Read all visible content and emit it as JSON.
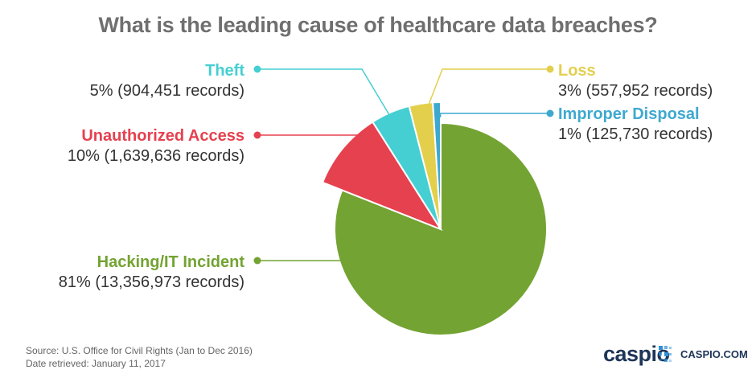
{
  "title": "What is the leading cause of healthcare data breaches?",
  "chart_data": {
    "type": "pie",
    "title": "What is the leading cause of healthcare data breaches?",
    "slices": [
      {
        "key": "hacking",
        "label": "Hacking/IT Incident",
        "percent": 81,
        "percent_label": "81%",
        "records": 13356973,
        "detail": "81% (13,356,973 records)",
        "color": "#73a332",
        "exploded": false
      },
      {
        "key": "unauthorized",
        "label": "Unauthorized Access",
        "percent": 10,
        "percent_label": "10%",
        "records": 1639636,
        "detail": "10% (1,639,636 records)",
        "color": "#e5414f",
        "exploded": true
      },
      {
        "key": "theft",
        "label": "Theft",
        "percent": 5,
        "percent_label": "5%",
        "records": 904451,
        "detail": "5% (904,451 records)",
        "color": "#45cfd3",
        "exploded": true
      },
      {
        "key": "loss",
        "label": "Loss",
        "percent": 3,
        "percent_label": "3%",
        "records": 557952,
        "detail": "3% (557,952 records)",
        "color": "#e3cf4c",
        "exploded": true
      },
      {
        "key": "disposal",
        "label": "Improper Disposal",
        "percent": 1,
        "percent_label": "1%",
        "records": 125730,
        "detail": "1% (125,730 records)",
        "color": "#3ea9cf",
        "exploded": true
      }
    ]
  },
  "footer": {
    "source": "Source: U.S. Office for Civil Rights (Jan to Dec 2016)",
    "retrieved": "Date retrieved: January 11, 2017"
  },
  "logo": {
    "word": "caspio",
    "url": "CASPIO.COM",
    "color": "#1d3557",
    "dot_color": "#2f8fd8"
  }
}
